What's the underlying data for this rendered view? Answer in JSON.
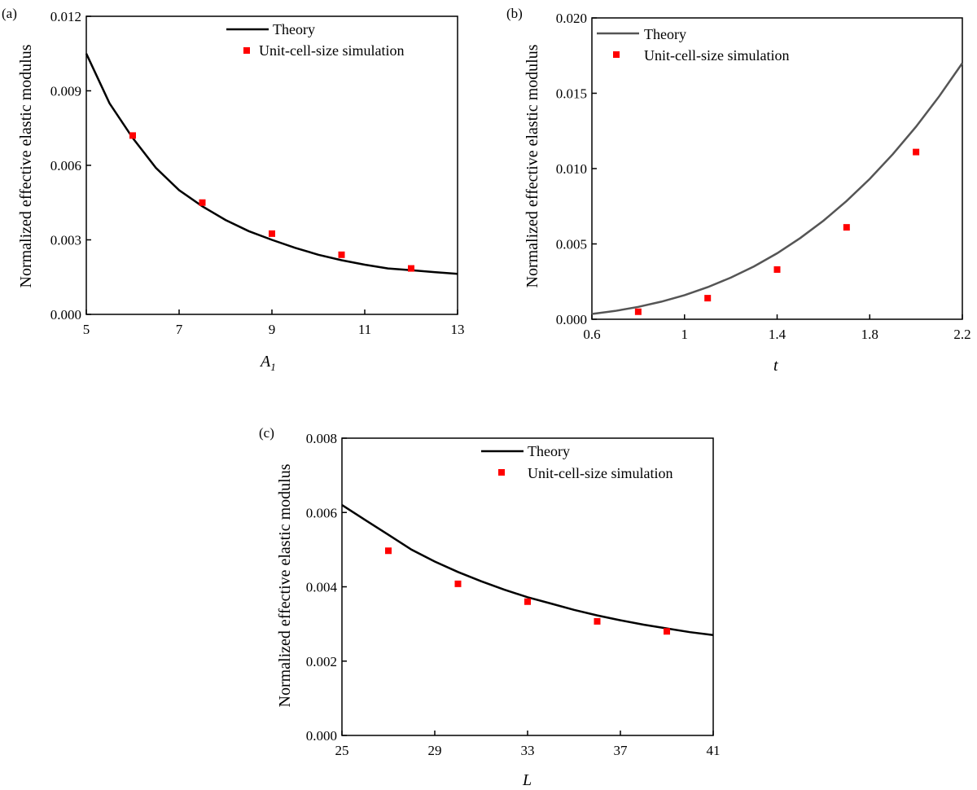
{
  "chart_data": [
    {
      "id": "a",
      "type": "line+scatter",
      "panel_label": "(a)",
      "xlabel": "A",
      "xlabel_sub": "1",
      "ylabel": "Normalized effective elastic modulus",
      "xlim": [
        5,
        13
      ],
      "ylim": [
        0,
        0.012
      ],
      "xticks": [
        5,
        7,
        9,
        11,
        13
      ],
      "xtick_labels": [
        "5",
        "7",
        "9",
        "11",
        "13"
      ],
      "yticks": [
        0,
        0.003,
        0.006,
        0.009,
        0.012
      ],
      "ytick_labels": [
        "0.000",
        "0.003",
        "0.006",
        "0.009",
        "0.012"
      ],
      "legend": {
        "position": "top-right",
        "line_label": "Theory",
        "marker_label": "Unit-cell-size simulation"
      },
      "line_color": "#000000",
      "marker_color": "#ff0000",
      "theory": {
        "name": "Theory",
        "x": [
          5,
          5.5,
          6,
          6.5,
          7,
          7.5,
          8,
          8.5,
          9,
          9.5,
          10,
          10.5,
          11,
          11.5,
          12,
          12.5,
          13
        ],
        "y": [
          0.0105,
          0.0085,
          0.0071,
          0.0059,
          0.005,
          0.00435,
          0.0038,
          0.00335,
          0.003,
          0.00268,
          0.0024,
          0.00218,
          0.002,
          0.00185,
          0.00178,
          0.0017,
          0.00163
        ]
      },
      "simulation": {
        "name": "Unit-cell-size simulation",
        "x": [
          6,
          7.5,
          9,
          10.5,
          12
        ],
        "y": [
          0.0072,
          0.0045,
          0.00325,
          0.0024,
          0.00185
        ]
      }
    },
    {
      "id": "b",
      "type": "line+scatter",
      "panel_label": "(b)",
      "xlabel": "t",
      "xlabel_sub": "",
      "ylabel": "Normalized effective elastic modulus",
      "xlim": [
        0.6,
        2.2
      ],
      "ylim": [
        0,
        0.02
      ],
      "xticks": [
        0.6,
        1.0,
        1.4,
        1.8,
        2.2
      ],
      "xtick_labels": [
        "0.6",
        "1",
        "1.4",
        "1.8",
        "2.2"
      ],
      "yticks": [
        0,
        0.005,
        0.01,
        0.015,
        0.02
      ],
      "ytick_labels": [
        "0.000",
        "0.005",
        "0.010",
        "0.015",
        "0.020"
      ],
      "legend": {
        "position": "top-left",
        "line_label": "Theory",
        "marker_label": "Unit-cell-size simulation"
      },
      "line_color": "#555555",
      "marker_color": "#ff0000",
      "theory": {
        "name": "Theory",
        "x": [
          0.6,
          0.7,
          0.8,
          0.9,
          1.0,
          1.1,
          1.2,
          1.3,
          1.4,
          1.5,
          1.6,
          1.7,
          1.8,
          1.9,
          2.0,
          2.1,
          2.2
        ],
        "y": [
          0.00035,
          0.00055,
          0.00082,
          0.00117,
          0.0016,
          0.00213,
          0.00276,
          0.00351,
          0.00438,
          0.00539,
          0.00654,
          0.00785,
          0.00932,
          0.01096,
          0.01278,
          0.0148,
          0.017
        ]
      },
      "simulation": {
        "name": "Unit-cell-size simulation",
        "x": [
          0.8,
          1.1,
          1.4,
          1.7,
          2.0
        ],
        "y": [
          0.0005,
          0.0014,
          0.0033,
          0.0061,
          0.0111
        ]
      }
    },
    {
      "id": "c",
      "type": "line+scatter",
      "panel_label": "(c)",
      "xlabel": "L",
      "xlabel_sub": "",
      "ylabel": "Normalized effective elastic modulus",
      "xlim": [
        25,
        41
      ],
      "ylim": [
        0,
        0.008
      ],
      "xticks": [
        25,
        29,
        33,
        37,
        41
      ],
      "xtick_labels": [
        "25",
        "29",
        "33",
        "37",
        "41"
      ],
      "yticks": [
        0,
        0.002,
        0.004,
        0.006,
        0.008
      ],
      "ytick_labels": [
        "0.000",
        "0.002",
        "0.004",
        "0.006",
        "0.008"
      ],
      "legend": {
        "position": "top-right",
        "line_label": "Theory",
        "marker_label": "Unit-cell-size simulation"
      },
      "line_color": "#000000",
      "marker_color": "#ff0000",
      "theory": {
        "name": "Theory",
        "x": [
          25,
          26,
          27,
          28,
          29,
          30,
          31,
          32,
          33,
          34,
          35,
          36,
          37,
          38,
          39,
          40,
          41
        ],
        "y": [
          0.0062,
          0.0058,
          0.0054,
          0.005,
          0.00468,
          0.0044,
          0.00415,
          0.00392,
          0.00372,
          0.00355,
          0.00338,
          0.00323,
          0.0031,
          0.00298,
          0.00288,
          0.00278,
          0.0027
        ]
      },
      "simulation": {
        "name": "Unit-cell-size simulation",
        "x": [
          27,
          30,
          33,
          36,
          39
        ],
        "y": [
          0.00497,
          0.00408,
          0.0036,
          0.00307,
          0.0028
        ]
      }
    }
  ]
}
